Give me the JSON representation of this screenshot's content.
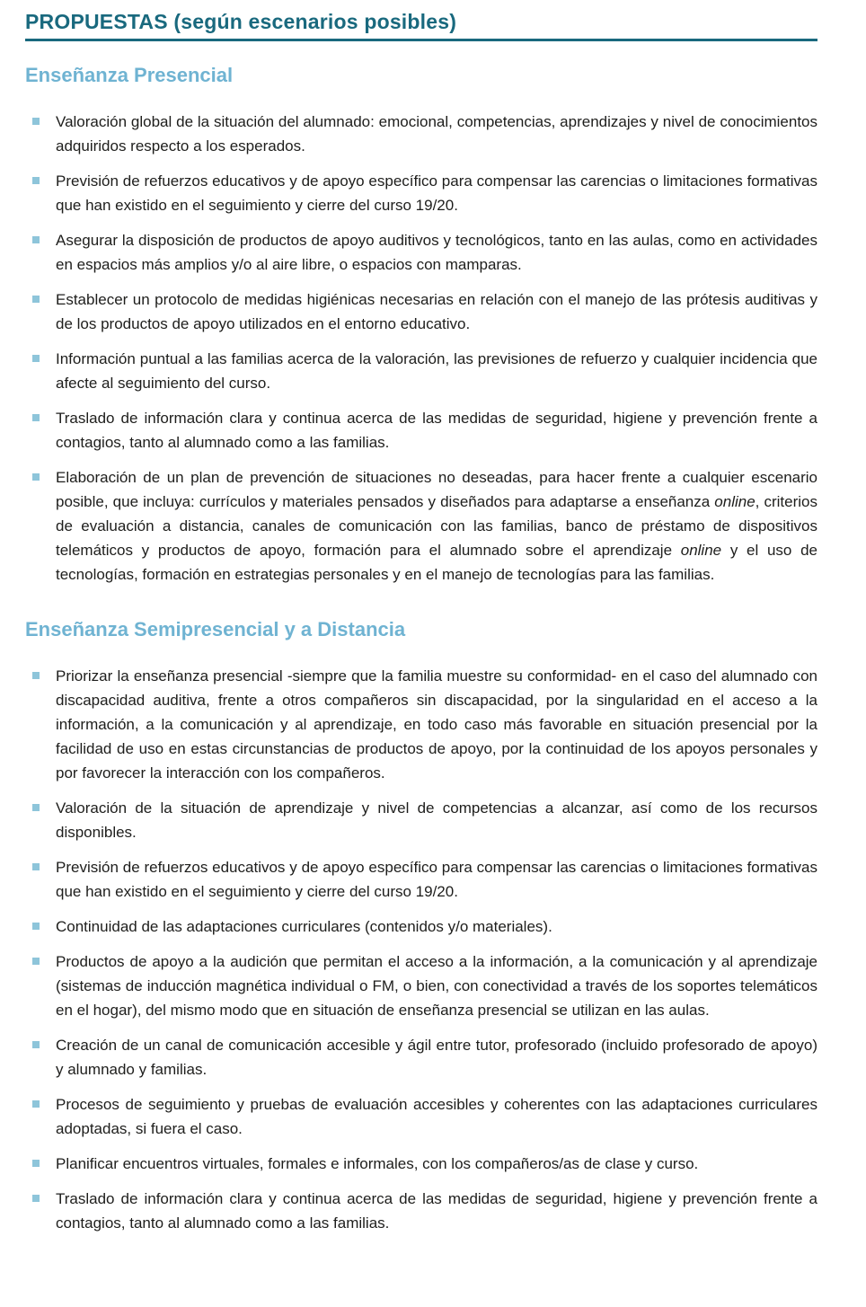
{
  "document": {
    "title": "PROPUESTAS (según escenarios posibles)"
  },
  "colors": {
    "title_teal": "#19697e",
    "divider_teal": "#19697e",
    "heading_blue": "#6fb3d2",
    "bullet_square_blue": "#8ec5da",
    "body_text": "#1e1e1c",
    "background": "#ffffff"
  },
  "sections": [
    {
      "heading": "Enseñanza Presencial",
      "bullets": [
        {
          "runs": [
            {
              "text": "Valoración global de la situación del alumnado: emocional, competencias, aprendizajes y nivel de conocimientos adquiridos respecto a los esperados.",
              "italic": false
            }
          ]
        },
        {
          "runs": [
            {
              "text": "Previsión de refuerzos educativos y de apoyo específico para compensar las carencias o limitaciones formativas que han existido en el seguimiento y cierre del curso 19/20.",
              "italic": false
            }
          ]
        },
        {
          "runs": [
            {
              "text": "Asegurar la disposición de productos de apoyo auditivos y tecnológicos, tanto en las aulas, como en actividades en espacios más amplios y/o al aire libre, o espacios con mamparas.",
              "italic": false
            }
          ]
        },
        {
          "runs": [
            {
              "text": "Establecer un protocolo de medidas higiénicas necesarias en relación con el manejo de las prótesis auditivas y de los productos de apoyo utilizados en el entorno educativo.",
              "italic": false
            }
          ]
        },
        {
          "runs": [
            {
              "text": "Información puntual a las familias acerca de la valoración, las previsiones de refuerzo y cualquier inci­dencia que afecte al seguimiento del curso.",
              "italic": false
            }
          ]
        },
        {
          "runs": [
            {
              "text": "Traslado de información clara y continua acerca de las medidas de seguridad, higiene y prevención frente a contagios, tanto al alumnado como a las familias.",
              "italic": false
            }
          ]
        },
        {
          "runs": [
            {
              "text": "Elaboración de un plan de prevención de situaciones no deseadas, para hacer frente a cualquier escenario posible, que incluya: currículos y materiales pensados y diseñados para adaptarse a enseñanza ",
              "italic": false
            },
            {
              "text": "online",
              "italic": true
            },
            {
              "text": ", criterios de evaluación a distancia, canales de comunicación con las familias, banco de préstamo de dis­positivos telemáticos y productos de apoyo, formación para el alumnado sobre el aprendizaje ",
              "italic": false
            },
            {
              "text": "online",
              "italic": true
            },
            {
              "text": " y el uso de tecnologías, formación en estrategias personales y en el manejo de tecnologías para las familias.",
              "italic": false
            }
          ]
        }
      ]
    },
    {
      "heading": "Enseñanza Semipresencial y a Distancia",
      "bullets": [
        {
          "runs": [
            {
              "text": "Priorizar la enseñanza presencial -siempre que la familia muestre su conformidad- en el caso del alum­nado con discapacidad auditiva, frente a otros compañeros sin discapacidad, por la singularidad en el acceso a la información, a la comunicación y al aprendizaje, en todo caso más favorable en situación presencial por la facilidad de uso en estas circunstancias de productos de apoyo, por la continuidad de los apoyos personales y por favorecer la interacción con los compañeros.",
              "italic": false
            }
          ]
        },
        {
          "runs": [
            {
              "text": "Valoración de la situación de aprendizaje y nivel de competencias a alcanzar, así como de los recursos disponibles.",
              "italic": false
            }
          ]
        },
        {
          "runs": [
            {
              "text": "Previsión de refuerzos educativos y de apoyo específico para compensar las carencias o limitaciones formativas que han existido en el seguimiento y cierre del curso 19/20.",
              "italic": false
            }
          ]
        },
        {
          "runs": [
            {
              "text": "Continuidad de las adaptaciones curriculares (contenidos y/o materiales).",
              "italic": false
            }
          ]
        },
        {
          "runs": [
            {
              "text": "Productos de apoyo a la audición que permitan el acceso a la información, a la comunicación y al apren­dizaje (sistemas de inducción magnética individual o FM, o bien, con conectividad a través de los so­portes telemáticos en el hogar), del mismo modo que en situación de enseñanza presencial se utilizan en las aulas.",
              "italic": false
            }
          ]
        },
        {
          "runs": [
            {
              "text": "Creación de un canal de comunicación accesible y ágil entre tutor, profesorado (incluido profesorado de apoyo) y alumnado y familias.",
              "italic": false
            }
          ]
        },
        {
          "runs": [
            {
              "text": "Procesos de seguimiento y pruebas de evaluación accesibles y coherentes con las adaptaciones curri­culares adoptadas, si fuera el caso.",
              "italic": false
            }
          ]
        },
        {
          "runs": [
            {
              "text": "Planificar encuentros virtuales, formales e informales, con los compañeros/as de clase y curso.",
              "italic": false
            }
          ]
        },
        {
          "runs": [
            {
              "text": "Traslado de información clara y continua acerca de las medidas de seguridad, higiene y prevención frente a contagios, tanto al alumnado como a las familias.",
              "italic": false
            }
          ]
        }
      ]
    }
  ]
}
